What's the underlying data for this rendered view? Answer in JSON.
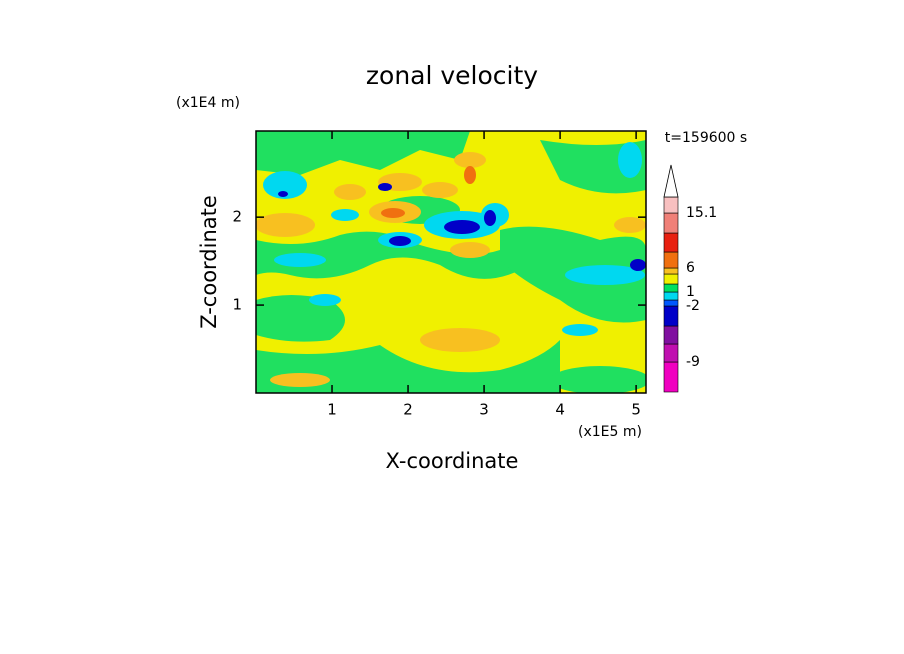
{
  "chart_data": {
    "type": "contour",
    "title": "zonal velocity",
    "x_label": "X-coordinate",
    "y_label": "Z-coordinate",
    "x_unit": "(x1E5 m)",
    "y_unit": "(x1E4 m)",
    "annotation": "t=159600 s",
    "xlim": [
      0,
      5.13
    ],
    "ylim": [
      0,
      2.98
    ],
    "xticks": [
      1,
      2,
      3,
      4,
      5
    ],
    "yticks": [
      1,
      2
    ],
    "colorbar": {
      "colors": [
        "#f000c0",
        "#c010b0",
        "#8010a0",
        "#0000c8",
        "#0058ff",
        "#00d8f0",
        "#00e060",
        "#f0f000",
        "#f8c020",
        "#f07010",
        "#e82010",
        "#f08078",
        "#f8c0c0"
      ],
      "labels": [
        null,
        -9,
        null,
        null,
        -2,
        null,
        1,
        null,
        null,
        6,
        null,
        null,
        15.1
      ],
      "extend_color": "#ffffff"
    }
  }
}
